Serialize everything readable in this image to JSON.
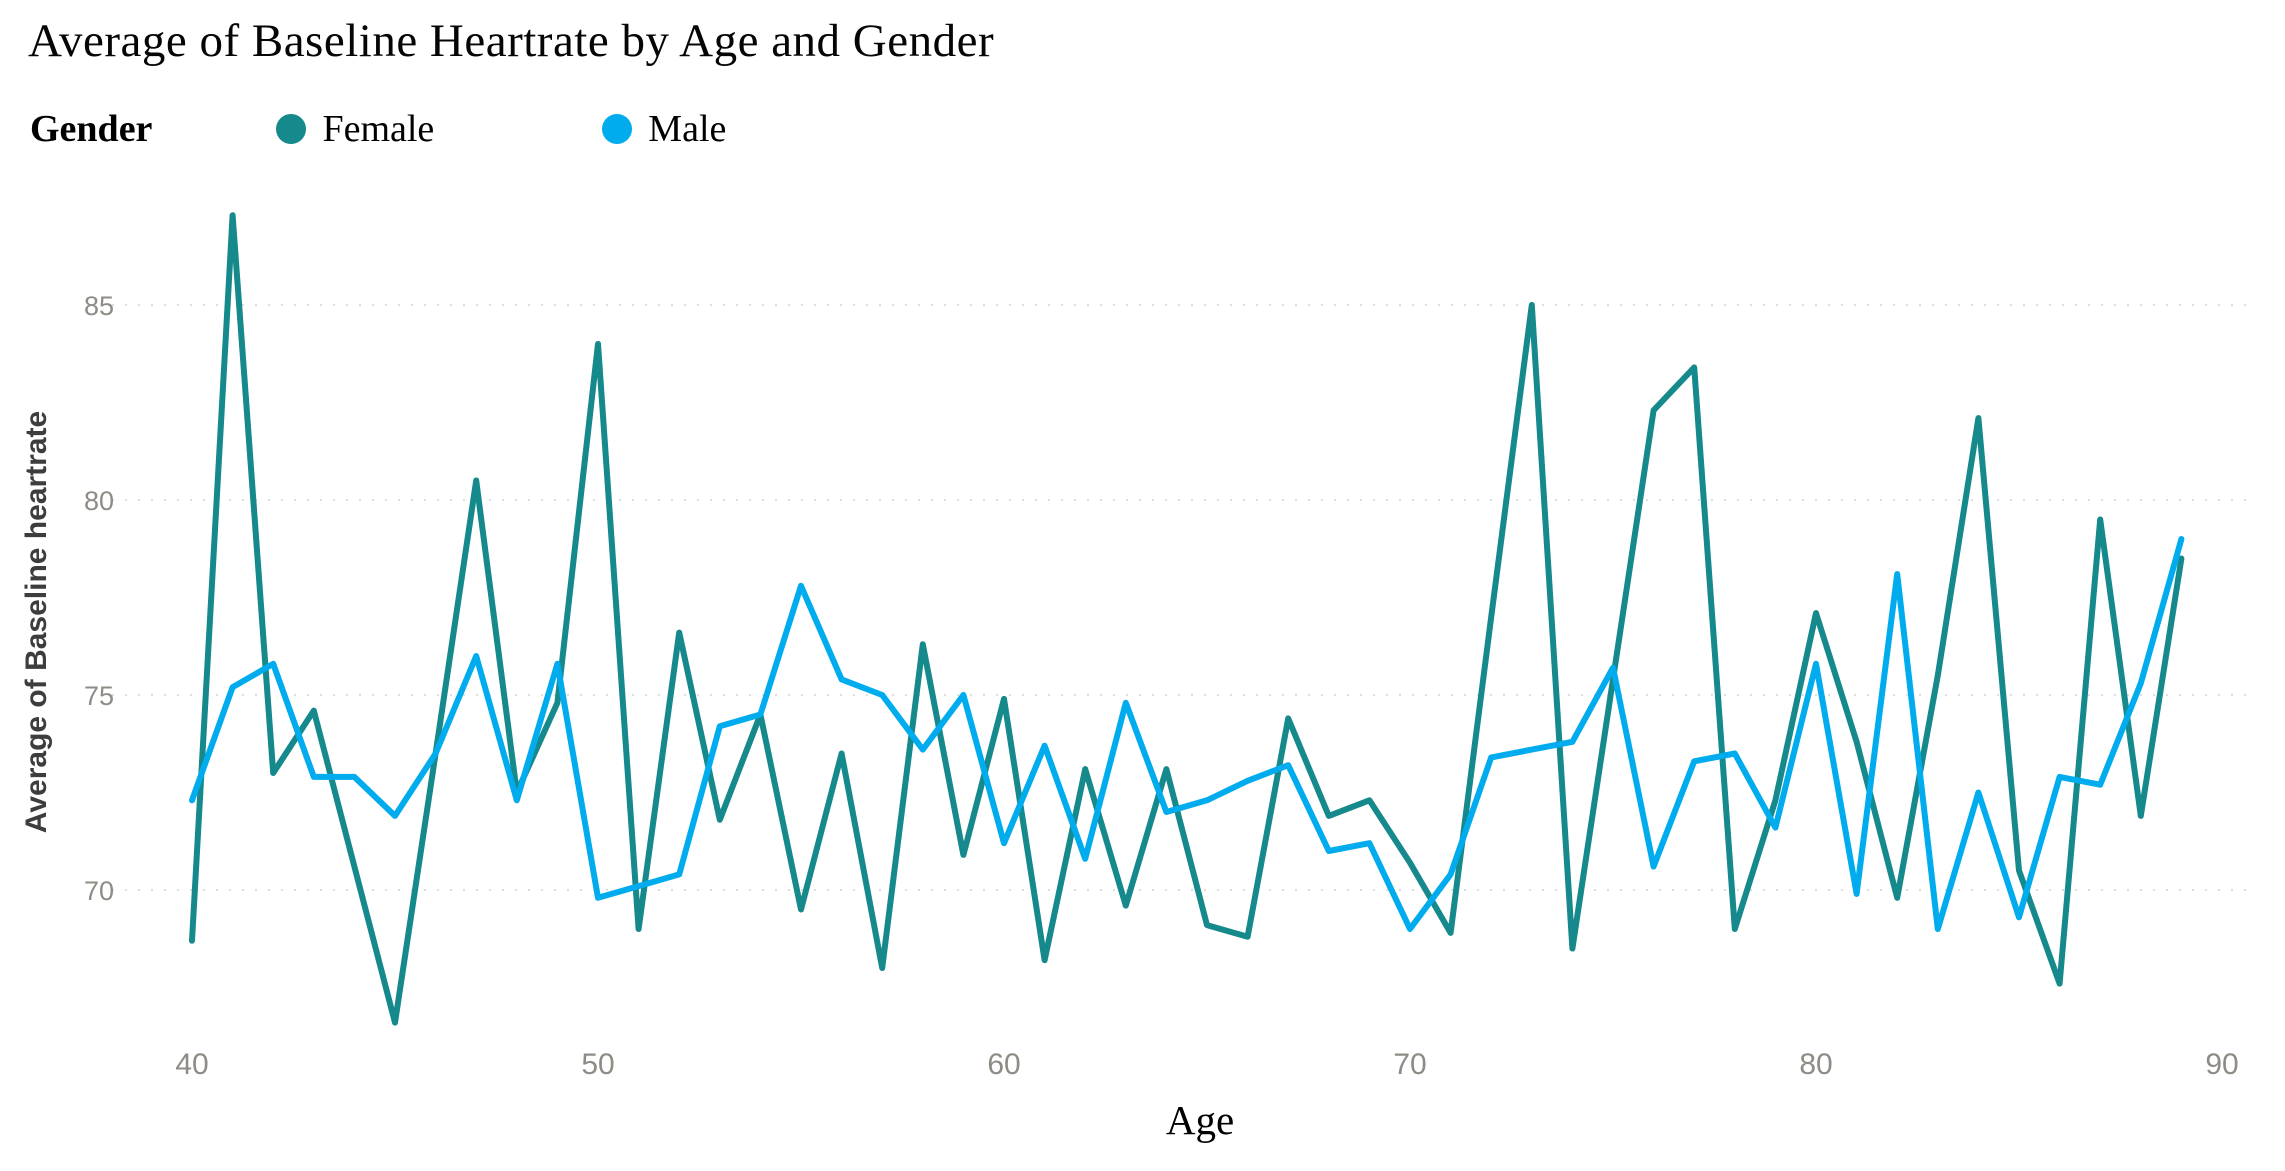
{
  "title": "Average of Baseline Heartrate by Age and Gender",
  "legend": {
    "label": "Gender",
    "items": [
      {
        "label": "Female",
        "color": "#15898B"
      },
      {
        "label": "Male",
        "color": "#00ACEE"
      }
    ]
  },
  "axis_style": {
    "tick_color": "#8f8b85",
    "grid_color": "#dedede",
    "axis_title_color": "#3d3d3d"
  },
  "chart_data": {
    "type": "line",
    "title": "Average of Baseline Heartrate by Age and Gender",
    "xlabel": "Age",
    "ylabel": "Average of Baseline heartrate",
    "x": [
      40,
      41,
      42,
      43,
      44,
      45,
      46,
      47,
      48,
      49,
      50,
      51,
      52,
      53,
      54,
      55,
      56,
      57,
      58,
      59,
      60,
      61,
      62,
      63,
      64,
      65,
      66,
      67,
      68,
      69,
      70,
      71,
      72,
      73,
      74,
      75,
      76,
      77,
      78,
      79,
      80,
      81,
      82,
      83,
      84,
      85,
      86,
      87,
      88,
      89
    ],
    "series": [
      {
        "name": "Female",
        "color": "#15898B",
        "values": [
          68.7,
          87.3,
          73.0,
          74.6,
          70.6,
          66.6,
          73.5,
          80.5,
          72.5,
          74.8,
          84.0,
          69.0,
          76.6,
          71.8,
          74.5,
          69.5,
          73.5,
          68.0,
          76.3,
          70.9,
          74.9,
          68.2,
          73.1,
          69.6,
          73.1,
          69.1,
          68.8,
          74.4,
          71.9,
          72.3,
          70.7,
          68.9,
          77.0,
          85.0,
          68.5,
          75.4,
          82.3,
          83.4,
          69.0,
          72.3,
          77.1,
          73.8,
          69.8,
          75.5,
          82.1,
          70.5,
          67.6,
          79.5,
          71.9,
          78.5
        ]
      },
      {
        "name": "Male",
        "color": "#00ACEE",
        "values": [
          72.3,
          75.2,
          75.8,
          72.9,
          72.9,
          71.9,
          73.5,
          76.0,
          72.3,
          75.8,
          69.8,
          70.1,
          70.4,
          74.2,
          74.5,
          77.8,
          75.4,
          75.0,
          73.6,
          75.0,
          71.2,
          73.7,
          70.8,
          74.8,
          72.0,
          72.3,
          72.8,
          73.2,
          71.0,
          71.2,
          69.0,
          70.4,
          73.4,
          73.6,
          73.8,
          75.7,
          70.6,
          73.3,
          73.5,
          71.6,
          75.8,
          69.9,
          78.1,
          69.0,
          72.5,
          69.3,
          72.9,
          72.7,
          75.3,
          79.0
        ]
      }
    ],
    "x_ticks": [
      40,
      50,
      60,
      70,
      80,
      90
    ],
    "y_ticks": [
      70,
      75,
      80,
      85
    ],
    "xlim": [
      40,
      90
    ],
    "ylim_drawn": [
      66.4,
      87.8
    ],
    "grid": "horizontal-dotted",
    "legend_position": "top-left"
  }
}
